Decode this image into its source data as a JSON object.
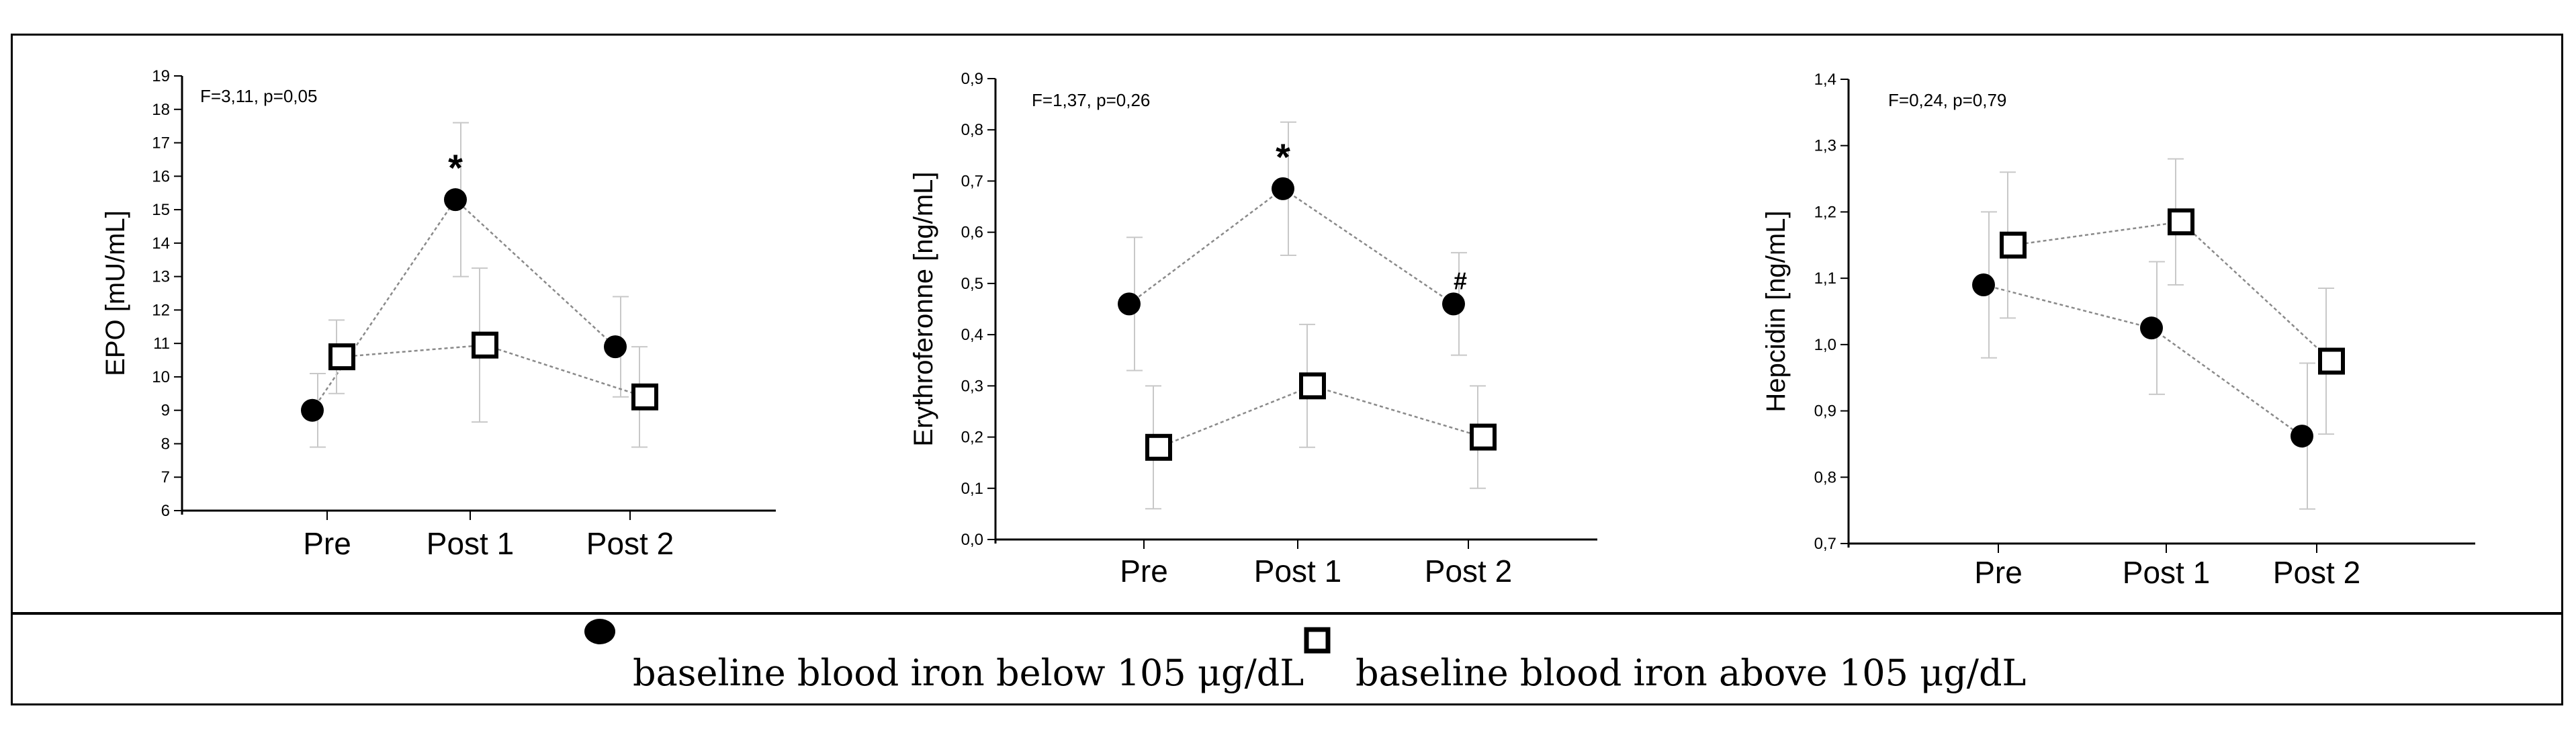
{
  "chart_data": [
    {
      "type": "line",
      "annotation": "F=3,11, p=0,05",
      "ylabel": "EPO [mU/mL]",
      "categories": [
        "Pre",
        "Post 1",
        "Post 2"
      ],
      "ylim": [
        6,
        19
      ],
      "yticks": [
        "6",
        "7",
        "8",
        "9",
        "10",
        "11",
        "12",
        "13",
        "14",
        "15",
        "16",
        "17",
        "18",
        "19"
      ],
      "series": [
        {
          "marker": "filled-circle",
          "values": [
            9.0,
            15.3,
            10.9
          ],
          "err": [
            1.1,
            2.3,
            1.5
          ]
        },
        {
          "marker": "open-square",
          "values": [
            10.6,
            10.95,
            9.4
          ],
          "err": [
            1.1,
            2.3,
            1.5
          ]
        }
      ],
      "marks": [
        {
          "series": 0,
          "point": 1,
          "text": "*"
        }
      ]
    },
    {
      "type": "line",
      "annotation": "F=1,37, p=0,26",
      "ylabel": "Erythroferonne [ng/mL]",
      "categories": [
        "Pre",
        "Post 1",
        "Post 2"
      ],
      "ylim": [
        0.0,
        0.9
      ],
      "yticks": [
        "0,0",
        "0,1",
        "0,2",
        "0,3",
        "0,4",
        "0,5",
        "0,6",
        "0,7",
        "0,8",
        "0,9"
      ],
      "series": [
        {
          "marker": "filled-circle",
          "values": [
            0.46,
            0.685,
            0.46
          ],
          "err": [
            0.13,
            0.13,
            0.1
          ]
        },
        {
          "marker": "open-square",
          "values": [
            0.18,
            0.3,
            0.2
          ],
          "err": [
            0.12,
            0.12,
            0.1
          ]
        }
      ],
      "marks": [
        {
          "series": 0,
          "point": 1,
          "text": "*"
        },
        {
          "series": 0,
          "point": 2,
          "text": "#"
        }
      ]
    },
    {
      "type": "line",
      "annotation": "F=0,24, p=0,79",
      "ylabel": "Hepcidin [ng/mL]",
      "categories": [
        "Pre",
        "Post 1",
        "Post 2"
      ],
      "ylim": [
        0.7,
        1.4
      ],
      "yticks": [
        "0,7",
        "0,8",
        "0,9",
        "1,0",
        "1,1",
        "1,2",
        "1,3",
        "1,4"
      ],
      "series": [
        {
          "marker": "filled-circle",
          "values": [
            1.09,
            1.025,
            0.862
          ],
          "err": [
            0.11,
            0.1,
            0.11
          ]
        },
        {
          "marker": "open-square",
          "values": [
            1.15,
            1.185,
            0.975
          ],
          "err": [
            0.11,
            0.095,
            0.11
          ]
        }
      ],
      "marks": []
    }
  ],
  "legend": [
    {
      "marker": "filled-circle",
      "label": "baseline blood iron below 105 μg/dL"
    },
    {
      "marker": "open-square",
      "label": "baseline blood iron above 105 μg/dL"
    }
  ]
}
